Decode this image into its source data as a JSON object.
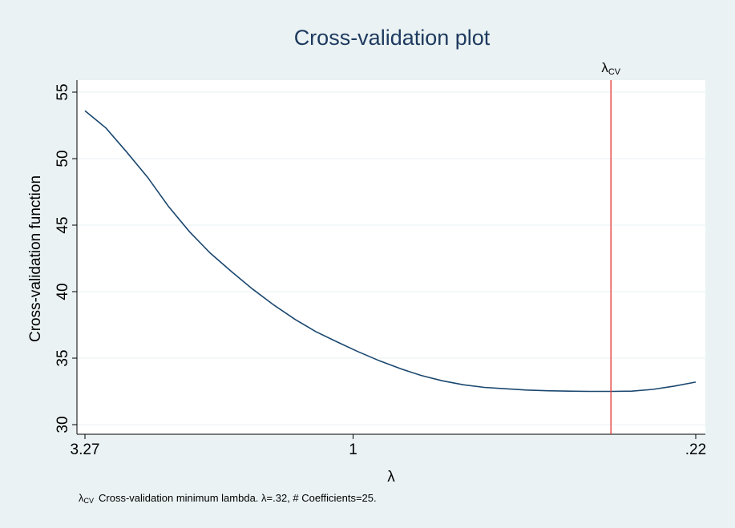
{
  "chart_data": {
    "type": "line",
    "title": "Cross-validation plot",
    "xlabel": "λ",
    "ylabel": "Cross-validation function",
    "x_scale": "log",
    "x_reversed": true,
    "xlim": [
      3.27,
      0.22
    ],
    "ylim": [
      30,
      55
    ],
    "grid": true,
    "x_ticks": [
      {
        "value": 3.27,
        "label": "3.27"
      },
      {
        "value": 1,
        "label": "1"
      },
      {
        "value": 0.22,
        "label": ".22"
      }
    ],
    "y_ticks": [
      30,
      35,
      40,
      45,
      50,
      55
    ],
    "series": [
      {
        "x": [
          3.27,
          2.98,
          2.72,
          2.48,
          2.26,
          2.06,
          1.88,
          1.71,
          1.56,
          1.42,
          1.29,
          1.18,
          1.07,
          0.98,
          0.89,
          0.81,
          0.74,
          0.675,
          0.615,
          0.56,
          0.51,
          0.465,
          0.424,
          0.386,
          0.352,
          0.32,
          0.292,
          0.266,
          0.242,
          0.22
        ],
        "values": [
          53.6,
          52.3,
          50.5,
          48.6,
          46.4,
          44.5,
          42.9,
          41.5,
          40.2,
          39.0,
          37.9,
          37.0,
          36.2,
          35.5,
          34.8,
          34.2,
          33.7,
          33.3,
          33.0,
          32.8,
          32.7,
          32.6,
          32.55,
          32.52,
          32.5,
          32.5,
          32.52,
          32.65,
          32.9,
          33.2
        ],
        "color": "#1a476f"
      }
    ],
    "reference_line": {
      "x": 0.32,
      "label_main": "λ",
      "label_sub": "CV",
      "color": "#e63b3b"
    },
    "note": {
      "symbol_main": "λ",
      "symbol_sub": "CV",
      "text": "Cross-validation minimum lambda.  λ=.32, # Coefficients=25."
    }
  },
  "colors": {
    "outer_background": "#eaf2f3",
    "plot_background": "#ffffff",
    "title_color": "#1e3a5f",
    "gridline": "#eaf2f3"
  }
}
